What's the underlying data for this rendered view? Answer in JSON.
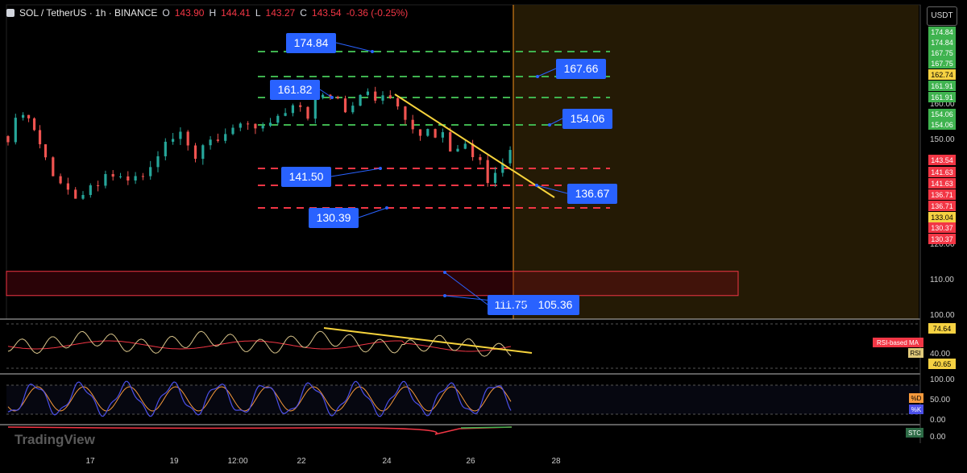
{
  "header": {
    "symbol": "SOL / TetherUS · 1h · BINANCE",
    "open_label": "O",
    "open": "143.90",
    "high_label": "H",
    "high": "144.41",
    "low_label": "L",
    "low": "143.27",
    "close_label": "C",
    "close": "143.54",
    "change": "-0.36 (-0.25%)"
  },
  "currency_button": "USDT",
  "watermark": "TradingView",
  "colors": {
    "background": "#000000",
    "up": "#26a69a",
    "down": "#ef5350",
    "green_level": "#3fb34f",
    "red_level": "#f23645",
    "callout": "#2962ff",
    "trendline": "#f7d33c",
    "forecast_zone": "#2a1f06",
    "rsi": "#d8c48a",
    "rsi_ma": "#f23645",
    "stoch_k": "#4b4fe8",
    "stoch_d": "#f79a3c"
  },
  "chart_data": {
    "type": "candlestick",
    "timeframe": "1h",
    "x_ticks": [
      "17",
      "19",
      "12:00",
      "22",
      "24",
      "26",
      "28"
    ],
    "y_ticks": [
      "100.00",
      "110.00",
      "120.00",
      "140.00",
      "150.00",
      "160.00"
    ],
    "y_range": [
      97,
      178
    ],
    "price_series": [
      [
        0,
        147
      ],
      [
        2,
        154
      ],
      [
        3.5,
        149
      ],
      [
        5,
        141
      ],
      [
        7,
        134
      ],
      [
        9,
        132
      ],
      [
        11,
        133
      ],
      [
        13,
        138
      ],
      [
        15,
        135
      ],
      [
        17,
        136
      ],
      [
        19,
        138
      ],
      [
        21,
        145
      ],
      [
        23,
        147
      ],
      [
        25,
        141
      ],
      [
        27,
        145
      ],
      [
        29,
        146
      ],
      [
        31,
        151
      ],
      [
        33,
        150
      ],
      [
        35,
        149
      ],
      [
        37,
        153
      ],
      [
        38,
        156
      ],
      [
        39,
        155
      ],
      [
        40,
        153
      ],
      [
        41,
        157
      ],
      [
        42,
        157
      ],
      [
        43,
        158
      ],
      [
        44,
        156
      ],
      [
        45,
        154
      ],
      [
        46,
        155
      ],
      [
        47,
        159
      ],
      [
        48,
        160
      ],
      [
        49,
        157
      ],
      [
        50,
        159
      ],
      [
        51,
        158
      ],
      [
        52,
        155
      ],
      [
        53,
        151
      ],
      [
        54,
        150
      ],
      [
        55,
        147
      ],
      [
        56,
        148
      ],
      [
        57,
        146
      ],
      [
        58,
        147
      ],
      [
        59,
        144
      ],
      [
        60,
        145
      ],
      [
        61,
        144
      ],
      [
        62,
        143
      ],
      [
        63,
        142
      ],
      [
        64,
        136
      ],
      [
        65,
        137
      ],
      [
        66,
        139
      ],
      [
        67,
        143
      ],
      [
        68,
        144
      ]
    ],
    "horizontal_levels": [
      {
        "value": 174.84,
        "label": "174.84",
        "color": "green"
      },
      {
        "value": 167.66,
        "label": "167.66",
        "color": "green"
      },
      {
        "value": 161.82,
        "label": "161.82",
        "color": "green"
      },
      {
        "value": 161.91,
        "label": "161.91",
        "color": "green"
      },
      {
        "value": 154.06,
        "label": "154.06",
        "color": "green"
      },
      {
        "value": 141.5,
        "label": "141.50",
        "color": "red"
      },
      {
        "value": 136.67,
        "label": "136.67",
        "color": "red"
      },
      {
        "value": 130.39,
        "label": "130.39",
        "color": "red"
      }
    ],
    "callouts": [
      "174.84",
      "167.66",
      "161.82",
      "154.06",
      "141.50",
      "136.67",
      "130.39",
      "111.75",
      "105.36"
    ],
    "support_zone": {
      "top": 111.75,
      "bottom": 105.36
    },
    "trendline": {
      "from": 163,
      "to": 136
    },
    "axis_badges": [
      {
        "value": "174.84",
        "color": "green"
      },
      {
        "value": "174.84",
        "color": "green"
      },
      {
        "value": "167.75",
        "color": "green"
      },
      {
        "value": "167.75",
        "color": "green"
      },
      {
        "value": "162.74",
        "color": "yellow"
      },
      {
        "value": "161.91",
        "color": "green"
      },
      {
        "value": "161.91",
        "color": "green"
      },
      {
        "value": "154.06",
        "color": "green"
      },
      {
        "value": "154.06",
        "color": "green"
      },
      {
        "value": "143.54",
        "color": "red"
      },
      {
        "value": "141.63",
        "color": "red"
      },
      {
        "value": "141.63",
        "color": "red"
      },
      {
        "value": "136.71",
        "color": "red"
      },
      {
        "value": "136.71",
        "color": "red"
      },
      {
        "value": "133.04",
        "color": "yellow"
      },
      {
        "value": "130.37",
        "color": "red"
      },
      {
        "value": "130.37",
        "color": "red"
      }
    ],
    "rsi": {
      "label": "RSI",
      "ma_label": "RSI-based MA",
      "badges": [
        "74.64",
        "40.65"
      ],
      "ticks": [
        "40.00"
      ]
    },
    "stoch": {
      "d_label": "%D",
      "k_label": "%K",
      "ticks": [
        "100.00",
        "50.00",
        "0.00"
      ]
    },
    "stc": {
      "label": "STC",
      "ticks": [
        "0.00"
      ]
    }
  }
}
